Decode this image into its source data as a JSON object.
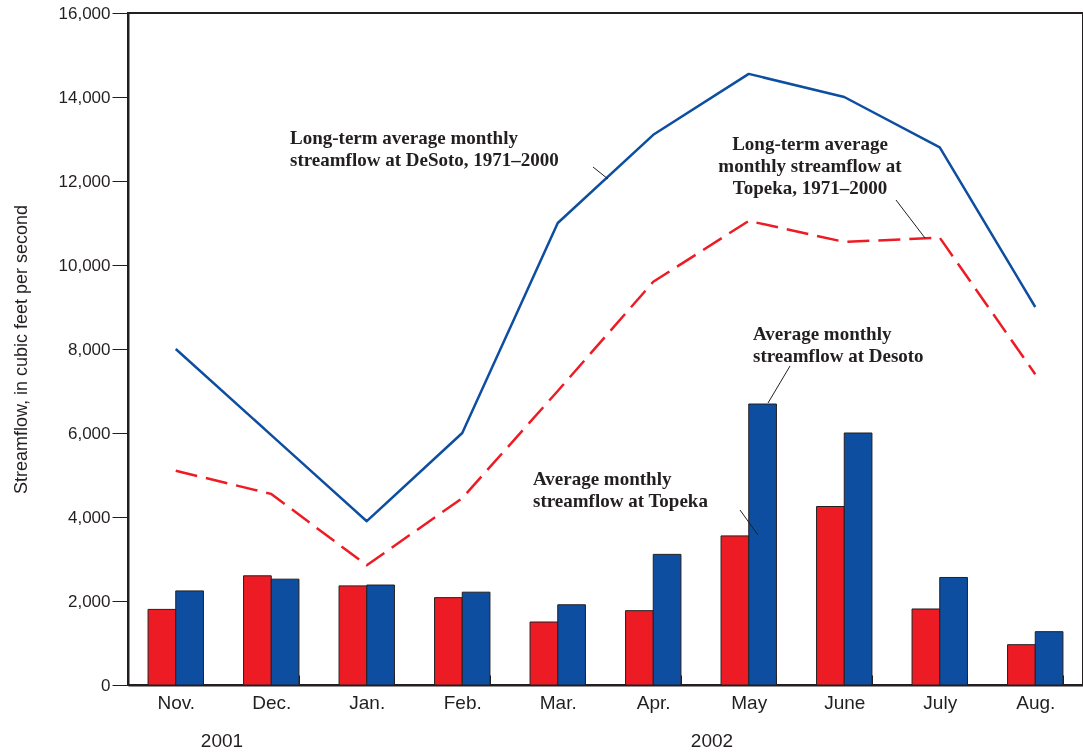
{
  "chart_data": {
    "type": "bar",
    "ylabel": "Streamflow, in cubic feet per second",
    "categories": [
      "Nov.",
      "Dec.",
      "Jan.",
      "Feb.",
      "Mar.",
      "Apr.",
      "May",
      "June",
      "July",
      "Aug."
    ],
    "ylim": [
      0,
      16000
    ],
    "yticks": [
      0,
      {
        "value": 2000,
        "label": "2,000"
      },
      {
        "value": 4000,
        "label": "4,000"
      },
      {
        "value": 6000,
        "label": "6,000"
      },
      {
        "value": 8000,
        "label": "8,000"
      },
      {
        "value": 10000,
        "label": "10,000"
      },
      {
        "value": 12000,
        "label": "12,000"
      },
      {
        "value": 14000,
        "label": "14,000"
      },
      {
        "value": 16000,
        "label": "16,000"
      }
    ],
    "grid": false,
    "series": [
      {
        "name": "Average monthly streamflow at Topeka",
        "color": "#ed1c24",
        "values": [
          1800,
          2600,
          2360,
          2080,
          1500,
          1770,
          3550,
          4250,
          1810,
          960
        ]
      },
      {
        "name": "Average monthly streamflow at Desoto",
        "color": "#0d4ea1",
        "values": [
          2240,
          2520,
          2380,
          2210,
          1910,
          3110,
          6690,
          6000,
          2560,
          1270
        ]
      },
      {
        "name": "Long-term average monthly streamflow at DeSoto, 1971–2000",
        "type": "line",
        "line_style": "solid",
        "color": "#0d4ea1",
        "values": [
          8000,
          5950,
          3900,
          6000,
          11000,
          13100,
          14550,
          14000,
          12800,
          9000
        ]
      },
      {
        "name": "Long-term average monthly streamflow at Topeka, 1971–2000",
        "type": "line",
        "line_style": "dashed",
        "color": "#ed1c24",
        "values": [
          5100,
          4550,
          2850,
          4450,
          7000,
          9600,
          11050,
          10550,
          10650,
          7400
        ]
      }
    ],
    "annotations": [
      "2001",
      "2002"
    ]
  }
}
